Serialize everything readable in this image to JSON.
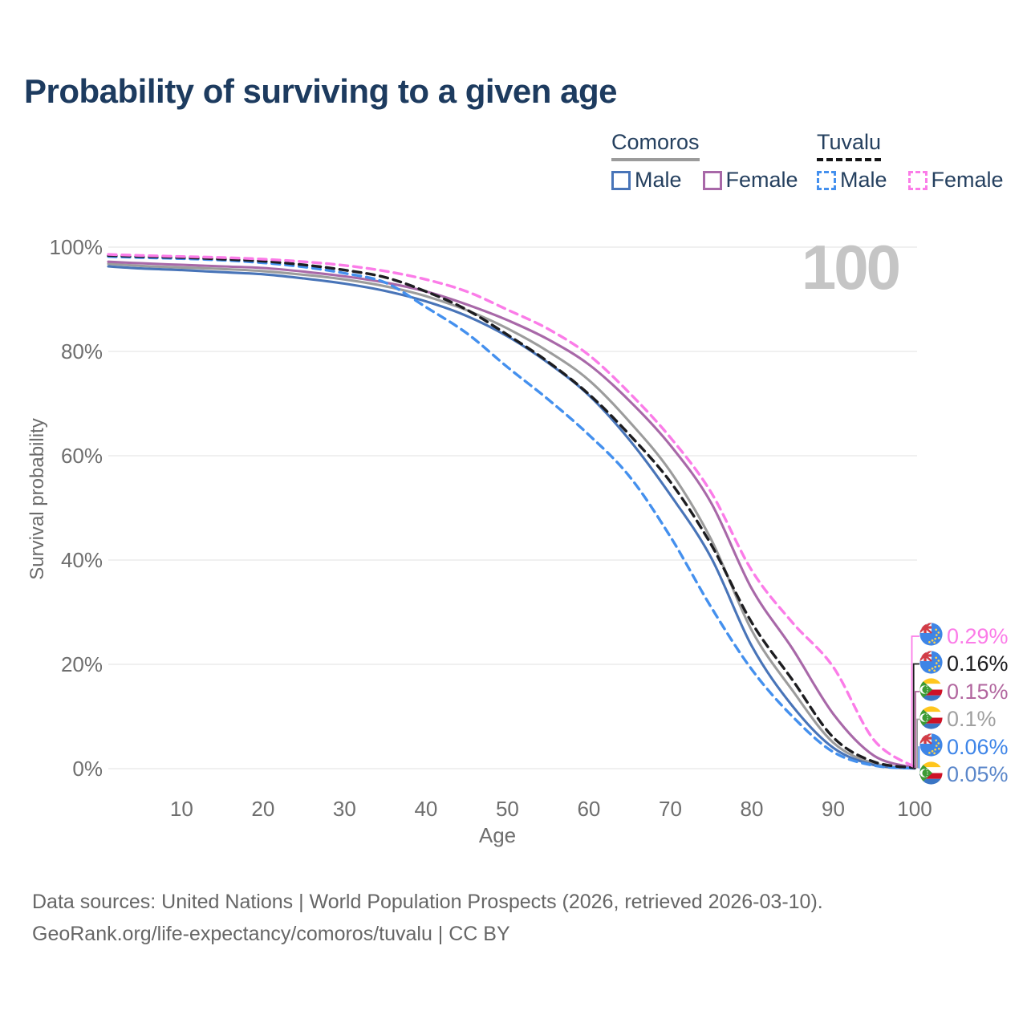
{
  "title": "Probability of surviving to a given age",
  "watermark_age": "100",
  "legend": {
    "groups": [
      {
        "label": "Comoros",
        "line_style": "solid",
        "underline_color": "#9b9b9b",
        "items": [
          {
            "label": "Male",
            "color": "#4874b8",
            "dash": false
          },
          {
            "label": "Female",
            "color": "#a868a8",
            "dash": false
          }
        ]
      },
      {
        "label": "Tuvalu",
        "line_style": "dashed",
        "underline_color": "#161618",
        "items": [
          {
            "label": "Male",
            "color": "#4490ee",
            "dash": true
          },
          {
            "label": "Female",
            "color": "#fb7ce8",
            "dash": true
          }
        ]
      }
    ]
  },
  "axes": {
    "y": {
      "title": "Survival probability",
      "ticks": [
        "100%",
        "80%",
        "60%",
        "40%",
        "20%",
        "0%"
      ],
      "tick_values": [
        100,
        80,
        60,
        40,
        20,
        0
      ]
    },
    "x": {
      "title": "Age",
      "ticks": [
        "10",
        "20",
        "30",
        "40",
        "50",
        "60",
        "70",
        "80",
        "90",
        "100"
      ],
      "tick_values": [
        10,
        20,
        30,
        40,
        50,
        60,
        70,
        80,
        90,
        100
      ]
    }
  },
  "footer": {
    "line1": "Data sources: United Nations | World Population Prospects (2026, retrieved 2026-03-10).",
    "line2": "GeoRank.org/life-expectancy/comoros/tuvalu | CC BY"
  },
  "chart_data": {
    "type": "line",
    "title": "Probability of surviving to a given age",
    "xlabel": "Age",
    "ylabel": "Survival probability",
    "x_range": [
      1,
      100
    ],
    "y_range_percent": [
      0,
      100
    ],
    "grid": "horizontal",
    "legend_position": "top-right",
    "current_age_indicator": "100",
    "ages": [
      1,
      5,
      10,
      15,
      20,
      25,
      30,
      35,
      40,
      45,
      50,
      55,
      60,
      65,
      70,
      75,
      80,
      85,
      90,
      95,
      100
    ],
    "series": [
      {
        "name": "Tuvalu Female",
        "country": "Tuvalu",
        "sex": "Female",
        "line_style": "dashed",
        "color": "#fb7ce8",
        "end_label": "0.29%",
        "end_label_color": "#fb7ce8",
        "flag": "tuvalu",
        "values": [
          98.6,
          98.4,
          98.2,
          98.0,
          97.7,
          97.2,
          96.5,
          95.4,
          93.8,
          91.5,
          88.0,
          84.3,
          79.3,
          72.0,
          63.5,
          53.0,
          38.0,
          28.0,
          19.5,
          5.5,
          0.29
        ]
      },
      {
        "name": "Tuvalu Both sexes",
        "country": "Tuvalu",
        "sex": "Both",
        "line_style": "dashed",
        "color": "#1d1d20",
        "end_label": "0.16%",
        "end_label_color": "#1d1d20",
        "flag": "tuvalu",
        "values": [
          98.4,
          98.2,
          98.0,
          97.7,
          97.3,
          96.6,
          95.6,
          94.2,
          91.5,
          88.0,
          83.2,
          78.0,
          71.8,
          64.0,
          55.0,
          43.0,
          28.0,
          17.0,
          6.0,
          1.3,
          0.16
        ]
      },
      {
        "name": "Comoros Female",
        "country": "Comoros",
        "sex": "Female",
        "line_style": "solid",
        "color": "#a868a8",
        "end_label": "0.15%",
        "end_label_color": "#b2679f",
        "flag": "comoros",
        "values": [
          97.2,
          96.9,
          96.6,
          96.3,
          96.0,
          95.3,
          94.4,
          93.2,
          91.5,
          89.0,
          86.0,
          82.3,
          77.5,
          70.5,
          62.0,
          51.0,
          34.5,
          23.0,
          10.5,
          2.5,
          0.15
        ]
      },
      {
        "name": "Comoros Both sexes",
        "country": "Comoros",
        "sex": "Both",
        "line_style": "solid",
        "color": "#9c9c9c",
        "end_label": "0.1%",
        "end_label_color": "#a0a0a0",
        "flag": "comoros",
        "values": [
          96.8,
          96.4,
          96.1,
          95.8,
          95.4,
          94.7,
          93.8,
          92.5,
          90.6,
          87.9,
          84.4,
          80.0,
          74.5,
          66.5,
          57.0,
          44.0,
          26.5,
          15.0,
          5.0,
          1.0,
          0.1
        ]
      },
      {
        "name": "Tuvalu Male",
        "country": "Tuvalu",
        "sex": "Male",
        "line_style": "dashed",
        "color": "#4490ee",
        "end_label": "0.06%",
        "end_label_color": "#3e85e8",
        "flag": "tuvalu",
        "values": [
          98.2,
          98.0,
          97.8,
          97.5,
          97.0,
          96.2,
          95.0,
          93.2,
          88.5,
          83.5,
          77.0,
          70.8,
          64.0,
          56.0,
          44.5,
          31.0,
          19.0,
          10.0,
          3.2,
          0.6,
          0.06
        ]
      },
      {
        "name": "Comoros Male",
        "country": "Comoros",
        "sex": "Male",
        "line_style": "solid",
        "color": "#4874b8",
        "end_label": "0.05%",
        "end_label_color": "#5b87ca",
        "flag": "comoros",
        "values": [
          96.3,
          95.9,
          95.6,
          95.2,
          94.8,
          94.0,
          93.0,
          91.6,
          89.6,
          86.8,
          82.9,
          77.8,
          71.6,
          63.0,
          52.5,
          40.5,
          23.5,
          12.0,
          4.0,
          0.7,
          0.05
        ]
      }
    ]
  }
}
